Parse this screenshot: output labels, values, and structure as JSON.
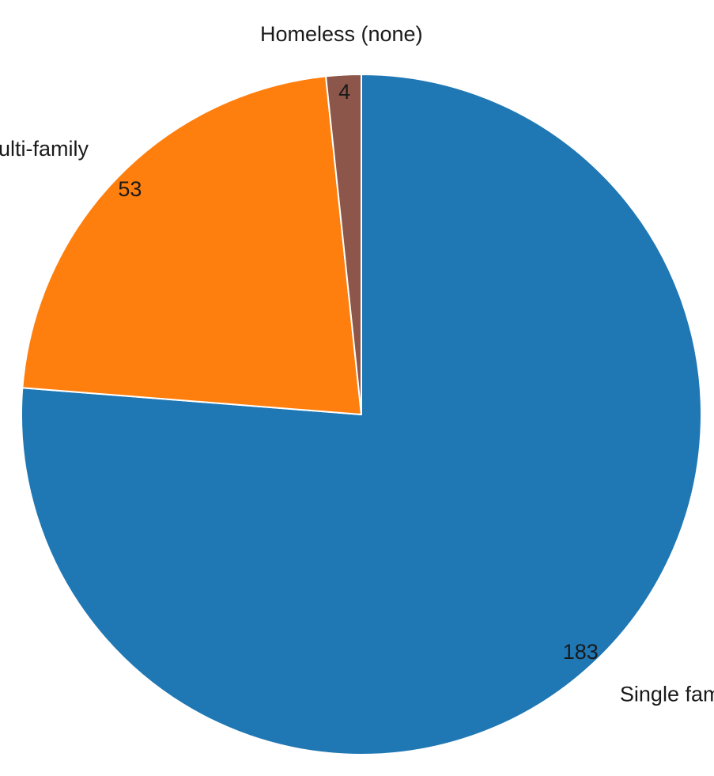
{
  "chart_data": {
    "type": "pie",
    "title": "",
    "start_angle_deg": 90,
    "direction": "clockwise",
    "slices": [
      {
        "label": "Single family",
        "value": 183,
        "color": "#1f77b4"
      },
      {
        "label": "Multi-family",
        "value": 53,
        "color": "#ff7f0e"
      },
      {
        "label": "Homeless (none)",
        "value": 4,
        "color": "#8c564b"
      }
    ]
  }
}
